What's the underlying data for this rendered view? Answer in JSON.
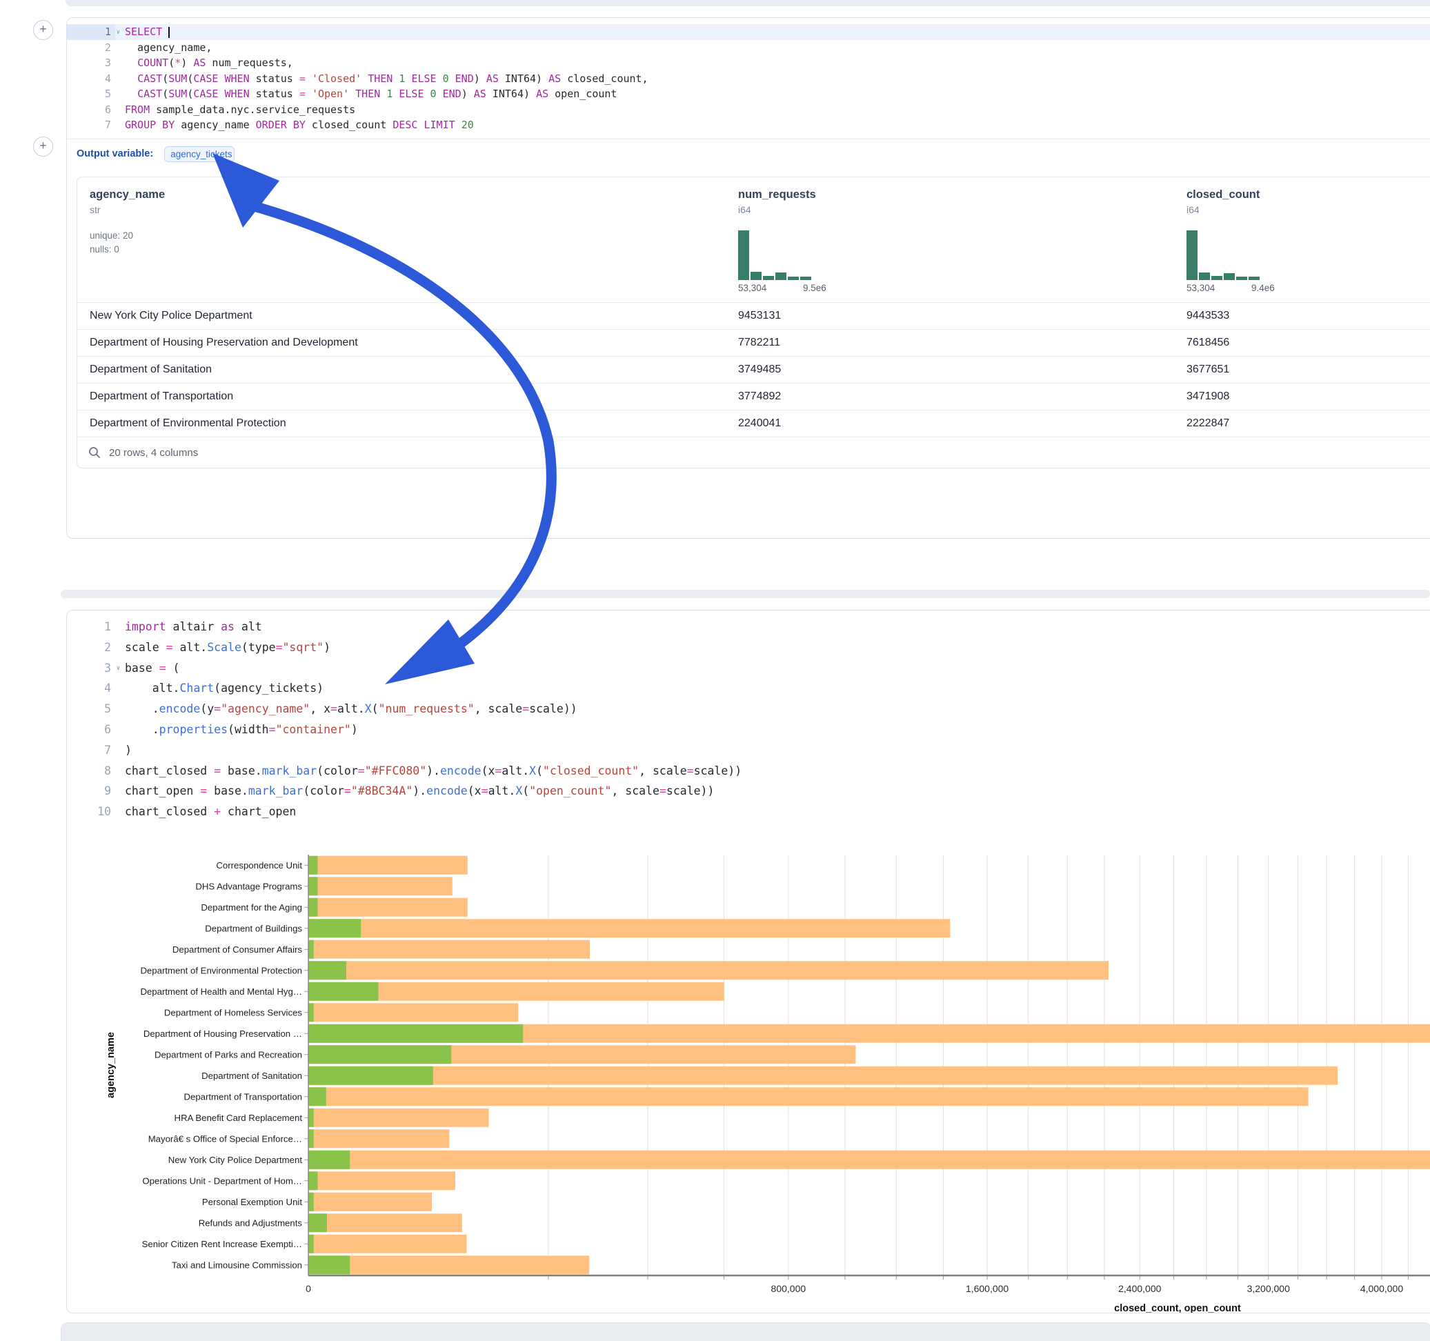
{
  "sql_cell": {
    "lines": [
      {
        "n": "1",
        "caret": true,
        "active": true,
        "segs": [
          [
            "k",
            "SELECT"
          ],
          [
            "t",
            " "
          ],
          [
            "cur",
            ""
          ]
        ]
      },
      {
        "n": "2",
        "segs": [
          [
            "t",
            "  agency_name,"
          ]
        ]
      },
      {
        "n": "3",
        "segs": [
          [
            "t",
            "  "
          ],
          [
            "k",
            "COUNT"
          ],
          [
            "t",
            "("
          ],
          [
            "o",
            "*"
          ],
          [
            "t",
            ") "
          ],
          [
            "k",
            "AS"
          ],
          [
            "t",
            " num_requests,"
          ]
        ]
      },
      {
        "n": "4",
        "segs": [
          [
            "t",
            "  "
          ],
          [
            "k",
            "CAST"
          ],
          [
            "t",
            "("
          ],
          [
            "k",
            "SUM"
          ],
          [
            "t",
            "("
          ],
          [
            "k",
            "CASE WHEN"
          ],
          [
            "t",
            " status "
          ],
          [
            "o",
            "="
          ],
          [
            "t",
            " "
          ],
          [
            "s",
            "'Closed'"
          ],
          [
            "t",
            " "
          ],
          [
            "k",
            "THEN"
          ],
          [
            "t",
            " "
          ],
          [
            "n",
            "1"
          ],
          [
            "t",
            " "
          ],
          [
            "k",
            "ELSE"
          ],
          [
            "t",
            " "
          ],
          [
            "n",
            "0"
          ],
          [
            "t",
            " "
          ],
          [
            "k",
            "END"
          ],
          [
            "t",
            ") "
          ],
          [
            "k",
            "AS"
          ],
          [
            "t",
            " INT64) "
          ],
          [
            "k",
            "AS"
          ],
          [
            "t",
            " closed_count,"
          ]
        ]
      },
      {
        "n": "5",
        "segs": [
          [
            "t",
            "  "
          ],
          [
            "k",
            "CAST"
          ],
          [
            "t",
            "("
          ],
          [
            "k",
            "SUM"
          ],
          [
            "t",
            "("
          ],
          [
            "k",
            "CASE WHEN"
          ],
          [
            "t",
            " status "
          ],
          [
            "o",
            "="
          ],
          [
            "t",
            " "
          ],
          [
            "s",
            "'Open'"
          ],
          [
            "t",
            " "
          ],
          [
            "k",
            "THEN"
          ],
          [
            "t",
            " "
          ],
          [
            "n",
            "1"
          ],
          [
            "t",
            " "
          ],
          [
            "k",
            "ELSE"
          ],
          [
            "t",
            " "
          ],
          [
            "n",
            "0"
          ],
          [
            "t",
            " "
          ],
          [
            "k",
            "END"
          ],
          [
            "t",
            ") "
          ],
          [
            "k",
            "AS"
          ],
          [
            "t",
            " INT64) "
          ],
          [
            "k",
            "AS"
          ],
          [
            "t",
            " open_count"
          ]
        ]
      },
      {
        "n": "6",
        "segs": [
          [
            "k",
            "FROM"
          ],
          [
            "t",
            " sample_data.nyc.service_requests"
          ]
        ]
      },
      {
        "n": "7",
        "segs": [
          [
            "k",
            "GROUP BY"
          ],
          [
            "t",
            " agency_name "
          ],
          [
            "k",
            "ORDER BY"
          ],
          [
            "t",
            " closed_count "
          ],
          [
            "k",
            "DESC"
          ],
          [
            "t",
            " "
          ],
          [
            "k",
            "LIMIT"
          ],
          [
            "t",
            " "
          ],
          [
            "n",
            "20"
          ]
        ]
      }
    ]
  },
  "output_variable": {
    "label": "Output variable:",
    "value": "agency_tickets"
  },
  "dataframe": {
    "columns": [
      {
        "name": "agency_name",
        "type": "str",
        "stats": [
          "unique: 20",
          "nulls: 0"
        ]
      },
      {
        "name": "num_requests",
        "type": "i64",
        "hist": [
          100,
          17,
          8,
          15,
          7,
          7
        ],
        "min_label": "53,304",
        "max_label": "9.5e6"
      },
      {
        "name": "closed_count",
        "type": "i64",
        "hist": [
          100,
          15,
          8,
          14,
          7,
          7
        ],
        "min_label": "53,304",
        "max_label": "9.4e6"
      }
    ],
    "rows": [
      [
        "New York City Police Department",
        "9453131",
        "9443533"
      ],
      [
        "Department of Housing Preservation and Development",
        "7782211",
        "7618456"
      ],
      [
        "Department of Sanitation",
        "3749485",
        "3677651"
      ],
      [
        "Department of Transportation",
        "3774892",
        "3471908"
      ],
      [
        "Department of Environmental Protection",
        "2240041",
        "2222847"
      ]
    ],
    "footer": "20 rows, 4 columns"
  },
  "python_cell": {
    "lines": [
      {
        "n": "1",
        "segs": [
          [
            "k",
            "import"
          ],
          [
            "t",
            " altair "
          ],
          [
            "k",
            "as"
          ],
          [
            "t",
            " alt"
          ]
        ]
      },
      {
        "n": "2",
        "segs": [
          [
            "t",
            "scale "
          ],
          [
            "o",
            "="
          ],
          [
            "t",
            " alt."
          ],
          [
            "f",
            "Scale"
          ],
          [
            "t",
            "(type"
          ],
          [
            "o",
            "="
          ],
          [
            "s",
            "\"sqrt\""
          ],
          [
            "t",
            ")"
          ]
        ]
      },
      {
        "n": "3",
        "caret": true,
        "segs": [
          [
            "t",
            "base "
          ],
          [
            "o",
            "="
          ],
          [
            "t",
            " ("
          ]
        ]
      },
      {
        "n": "4",
        "segs": [
          [
            "t",
            "    alt."
          ],
          [
            "f",
            "Chart"
          ],
          [
            "t",
            "(agency_tickets)"
          ]
        ]
      },
      {
        "n": "5",
        "segs": [
          [
            "t",
            "    ."
          ],
          [
            "f",
            "encode"
          ],
          [
            "t",
            "(y"
          ],
          [
            "o",
            "="
          ],
          [
            "s",
            "\"agency_name\""
          ],
          [
            "t",
            ", x"
          ],
          [
            "o",
            "="
          ],
          [
            "t",
            "alt."
          ],
          [
            "f",
            "X"
          ],
          [
            "t",
            "("
          ],
          [
            "s",
            "\"num_requests\""
          ],
          [
            "t",
            ", scale"
          ],
          [
            "o",
            "="
          ],
          [
            "t",
            "scale))"
          ]
        ]
      },
      {
        "n": "6",
        "segs": [
          [
            "t",
            "    ."
          ],
          [
            "f",
            "properties"
          ],
          [
            "t",
            "(width"
          ],
          [
            "o",
            "="
          ],
          [
            "s",
            "\"container\""
          ],
          [
            "t",
            ")"
          ]
        ]
      },
      {
        "n": "7",
        "segs": [
          [
            "t",
            ")"
          ]
        ]
      },
      {
        "n": "8",
        "segs": [
          [
            "t",
            "chart_closed "
          ],
          [
            "o",
            "="
          ],
          [
            "t",
            " base."
          ],
          [
            "f",
            "mark_bar"
          ],
          [
            "t",
            "(color"
          ],
          [
            "o",
            "="
          ],
          [
            "s",
            "\"#FFC080\""
          ],
          [
            "t",
            ")."
          ],
          [
            "f",
            "encode"
          ],
          [
            "t",
            "(x"
          ],
          [
            "o",
            "="
          ],
          [
            "t",
            "alt."
          ],
          [
            "f",
            "X"
          ],
          [
            "t",
            "("
          ],
          [
            "s",
            "\"closed_count\""
          ],
          [
            "t",
            ", scale"
          ],
          [
            "o",
            "="
          ],
          [
            "t",
            "scale))"
          ]
        ]
      },
      {
        "n": "9",
        "segs": [
          [
            "t",
            "chart_open "
          ],
          [
            "o",
            "="
          ],
          [
            "t",
            " base."
          ],
          [
            "f",
            "mark_bar"
          ],
          [
            "t",
            "(color"
          ],
          [
            "o",
            "="
          ],
          [
            "s",
            "\"#8BC34A\""
          ],
          [
            "t",
            ")."
          ],
          [
            "f",
            "encode"
          ],
          [
            "t",
            "(x"
          ],
          [
            "o",
            "="
          ],
          [
            "t",
            "alt."
          ],
          [
            "f",
            "X"
          ],
          [
            "t",
            "("
          ],
          [
            "s",
            "\"open_count\""
          ],
          [
            "t",
            ", scale"
          ],
          [
            "o",
            "="
          ],
          [
            "t",
            "scale))"
          ]
        ]
      },
      {
        "n": "10",
        "segs": [
          [
            "t",
            "chart_closed "
          ],
          [
            "o",
            "+"
          ],
          [
            "t",
            " chart_open"
          ]
        ]
      }
    ]
  },
  "chart_data": {
    "type": "bar",
    "orientation": "horizontal",
    "x_scale": "sqrt",
    "xlabel": "closed_count, open_count",
    "ylabel": "agency_name",
    "grid": true,
    "legend": "none",
    "x_minor_tick_step": 200000,
    "x_tick_labels": [
      {
        "v": 0,
        "label": "0"
      },
      {
        "v": 800000,
        "label": "800,000"
      },
      {
        "v": 1600000,
        "label": "1,600,000"
      },
      {
        "v": 2400000,
        "label": "2,400,000"
      },
      {
        "v": 3200000,
        "label": "3,200,000"
      },
      {
        "v": 4000000,
        "label": "4,000,000"
      }
    ],
    "categories": [
      "Correspondence Unit",
      "DHS Advantage Programs",
      "Department for the Aging",
      "Department of Buildings",
      "Department of Consumer Affairs",
      "Department of Environmental Protection",
      "Department of Health and Mental Hyg…",
      "Department of Homeless Services",
      "Department of Housing Preservation …",
      "Department of Parks and Recreation",
      "Department of Sanitation",
      "Department of Transportation",
      "HRA Benefit Card Replacement",
      "Mayorâ€ s Office of Special Enforce…",
      "New York City Police Department",
      "Operations Unit - Department of Hom…",
      "Personal Exemption Unit",
      "Refunds and Adjustments",
      "Senior Citizen Rent Increase Exempti…",
      "Taxi and Limousine Commission"
    ],
    "series": [
      {
        "name": "closed_count",
        "color": "#FFC080",
        "values": [
          88000,
          72000,
          88000,
          1430000,
          275000,
          2222847,
          600000,
          153000,
          7618456,
          1040000,
          3677651,
          3471908,
          113000,
          69000,
          9443533,
          75000,
          53000,
          82000,
          87000,
          274000
        ]
      },
      {
        "name": "open_count",
        "color": "#8BC34A",
        "values": [
          300,
          300,
          300,
          9600,
          100,
          5000,
          17000,
          100,
          160000,
          71000,
          54000,
          1100,
          100,
          100,
          6000,
          300,
          100,
          1200,
          100,
          6000
        ]
      }
    ]
  },
  "colors": {
    "hist_bar": "#377d6a",
    "arrow": "#2b59d8",
    "bar_closed": "#F7C185",
    "bar_open": "#8BC34A"
  }
}
